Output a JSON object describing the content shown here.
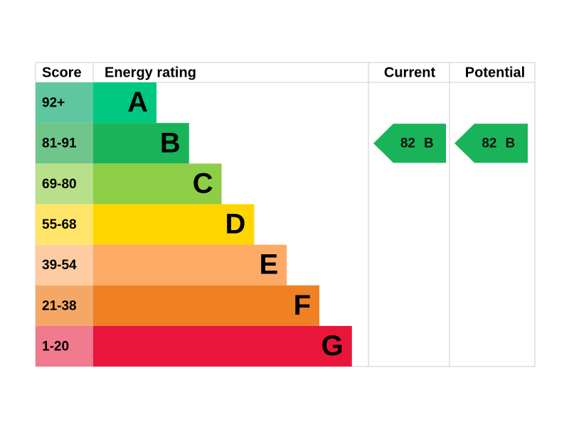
{
  "header": {
    "score": "Score",
    "energy_rating": "Energy rating",
    "current": "Current",
    "potential": "Potential"
  },
  "rows": [
    {
      "score": "92+",
      "rating": "A",
      "color": "#00c781",
      "score_color": "#5fc7a0"
    },
    {
      "score": "81-91",
      "rating": "B",
      "color": "#19b459",
      "score_color": "#6fc58a"
    },
    {
      "score": "69-80",
      "rating": "C",
      "color": "#8dce46",
      "score_color": "#b8e08a"
    },
    {
      "score": "55-68",
      "rating": "D",
      "color": "#ffd500",
      "score_color": "#ffe66a"
    },
    {
      "score": "39-54",
      "rating": "E",
      "color": "#fcaa65",
      "score_color": "#fdcca3"
    },
    {
      "score": "21-38",
      "rating": "F",
      "color": "#ef8023",
      "score_color": "#f5a865"
    },
    {
      "score": "1-20",
      "rating": "G",
      "color": "#e9153b",
      "score_color": "#f27a8e"
    }
  ],
  "current": {
    "score": 82,
    "rating": "B"
  },
  "potential": {
    "score": 82,
    "rating": "B"
  }
}
